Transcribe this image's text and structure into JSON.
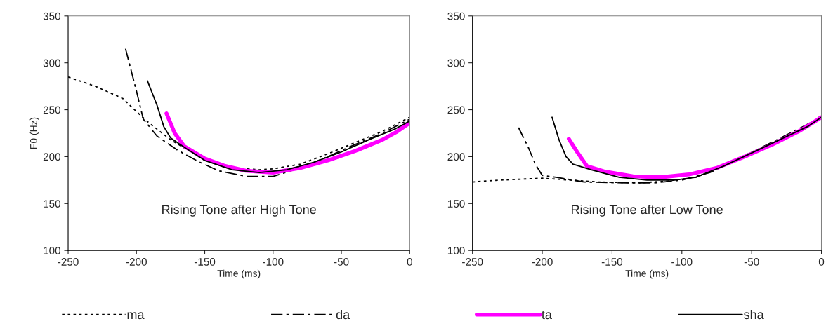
{
  "chart_data": [
    {
      "type": "line",
      "ylabel": "F0 (Hz)",
      "xlabel": "Time (ms)",
      "xlim": [
        -250,
        0
      ],
      "xticks": [
        -250,
        -200,
        -150,
        -100,
        -50,
        0
      ],
      "ylim": [
        100,
        350
      ],
      "yticks": [
        100,
        150,
        200,
        250,
        300,
        350
      ],
      "grid": false,
      "legend": "bottom",
      "marker": "none",
      "annotations": [
        "Rising Tone after High Tone"
      ],
      "series": [
        {
          "name": "ma",
          "color": "#000000",
          "line_style": "dotted",
          "x": [
            -250,
            -230,
            -210,
            -200,
            -190,
            -175,
            -160,
            -150,
            -130,
            -110,
            -100,
            -80,
            -60,
            -40,
            -20,
            0
          ],
          "values": [
            285,
            275,
            262,
            248,
            235,
            218,
            205,
            196,
            188,
            186,
            187,
            192,
            203,
            215,
            227,
            242
          ]
        },
        {
          "name": "da",
          "color": "#000000",
          "line_style": "dashed",
          "x": [
            -208,
            -200,
            -195,
            -185,
            -170,
            -155,
            -140,
            -120,
            -100,
            -80,
            -60,
            -40,
            -20,
            0
          ],
          "values": [
            315,
            270,
            240,
            222,
            207,
            195,
            185,
            179,
            179,
            188,
            200,
            213,
            225,
            240
          ]
        },
        {
          "name": "ta",
          "color": "#ff00ff",
          "line_style": "solid",
          "x": [
            -178,
            -172,
            -165,
            -150,
            -135,
            -120,
            -100,
            -80,
            -60,
            -40,
            -20,
            -10,
            0
          ],
          "values": [
            246,
            225,
            211,
            198,
            190,
            185,
            183,
            188,
            196,
            206,
            218,
            226,
            236
          ]
        },
        {
          "name": "sha",
          "color": "#000000",
          "line_style": "solid",
          "x": [
            -192,
            -185,
            -180,
            -175,
            -165,
            -150,
            -130,
            -110,
            -90,
            -70,
            -50,
            -30,
            -10,
            0
          ],
          "values": [
            281,
            255,
            232,
            220,
            210,
            196,
            186,
            183,
            186,
            194,
            205,
            218,
            230,
            238
          ]
        }
      ]
    },
    {
      "type": "line",
      "xlabel": "Time (ms)",
      "xlim": [
        -250,
        0
      ],
      "xticks": [
        -250,
        -200,
        -150,
        -100,
        -50,
        0
      ],
      "ylim": [
        100,
        350
      ],
      "yticks": [
        100,
        150,
        200,
        250,
        300,
        350
      ],
      "grid": false,
      "marker": "none",
      "annotations": [
        "Rising Tone after Low Tone"
      ],
      "series": [
        {
          "color": "#000000",
          "line_style": "dotted",
          "x": [
            -250,
            -230,
            -215,
            -200,
            -180,
            -160,
            -130,
            -110,
            -90,
            -70,
            -50,
            -30,
            -10,
            0
          ],
          "values": [
            173,
            175,
            176,
            177,
            175,
            173,
            172,
            174,
            178,
            190,
            205,
            218,
            232,
            244
          ]
        },
        {
          "color": "#000000",
          "line_style": "dashed",
          "x": [
            -217,
            -210,
            -205,
            -200,
            -190,
            -170,
            -140,
            -120,
            -100,
            -80,
            -60,
            -40,
            -20,
            0
          ],
          "values": [
            231,
            210,
            192,
            180,
            178,
            173,
            172,
            172,
            175,
            183,
            197,
            212,
            227,
            242
          ]
        },
        {
          "color": "#ff00ff",
          "line_style": "solid",
          "x": [
            -181,
            -175,
            -168,
            -155,
            -135,
            -115,
            -95,
            -75,
            -55,
            -35,
            -15,
            0
          ],
          "values": [
            219,
            205,
            190,
            184,
            179,
            178,
            181,
            188,
            200,
            213,
            228,
            242
          ]
        },
        {
          "color": "#000000",
          "line_style": "solid",
          "x": [
            -193,
            -188,
            -183,
            -178,
            -165,
            -145,
            -125,
            -105,
            -90,
            -70,
            -50,
            -30,
            -10,
            0
          ],
          "values": [
            242,
            218,
            200,
            192,
            186,
            178,
            175,
            175,
            178,
            190,
            204,
            218,
            232,
            242
          ]
        }
      ]
    }
  ]
}
